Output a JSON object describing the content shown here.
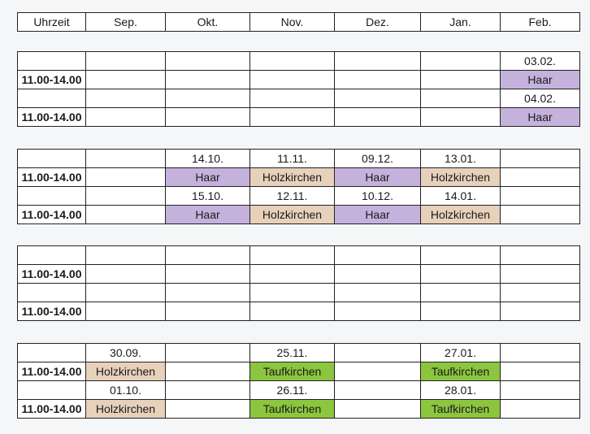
{
  "header": [
    "Uhrzeit",
    "Sep.",
    "Okt.",
    "Nov.",
    "Dez.",
    "Jan.",
    "Feb."
  ],
  "colors": {
    "Haar": "#c4b2dd",
    "Holzkirchen": "#e7d1bb",
    "Taufkirchen": "#8cc63f"
  },
  "blocks": [
    {
      "rows": [
        [
          "",
          "",
          "",
          "",
          "",
          "",
          "03.02."
        ],
        [
          "11.00-14.00",
          "",
          "",
          "",
          "",
          "",
          "Haar"
        ],
        [
          "",
          "",
          "",
          "",
          "",
          "",
          "04.02."
        ],
        [
          "11.00-14.00",
          "",
          "",
          "",
          "",
          "",
          "Haar"
        ]
      ]
    },
    {
      "rows": [
        [
          "",
          "",
          "14.10.",
          "11.11.",
          "09.12.",
          "13.01.",
          ""
        ],
        [
          "11.00-14.00",
          "",
          "Haar",
          "Holzkirchen",
          "Haar",
          "Holzkirchen",
          ""
        ],
        [
          "",
          "",
          "15.10.",
          "12.11.",
          "10.12.",
          "14.01.",
          ""
        ],
        [
          "11.00-14.00",
          "",
          "Haar",
          "Holzkirchen",
          "Haar",
          "Holzkirchen",
          ""
        ]
      ]
    },
    {
      "rows": [
        [
          "",
          "",
          "",
          "",
          "",
          "",
          ""
        ],
        [
          "11.00-14.00",
          "",
          "",
          "",
          "",
          "",
          ""
        ],
        [
          "",
          "",
          "",
          "",
          "",
          "",
          ""
        ],
        [
          "11.00-14.00",
          "",
          "",
          "",
          "",
          "",
          ""
        ]
      ]
    },
    {
      "rows": [
        [
          "",
          "30.09.",
          "",
          "25.11.",
          "",
          "27.01.",
          ""
        ],
        [
          "11.00-14.00",
          "Holzkirchen",
          "",
          "Taufkirchen",
          "",
          "Taufkirchen",
          ""
        ],
        [
          "",
          "01.10.",
          "",
          "26.11.",
          "",
          "28.01.",
          ""
        ],
        [
          "11.00-14.00",
          "Holzkirchen",
          "",
          "Taufkirchen",
          "",
          "Taufkirchen",
          ""
        ]
      ]
    }
  ]
}
